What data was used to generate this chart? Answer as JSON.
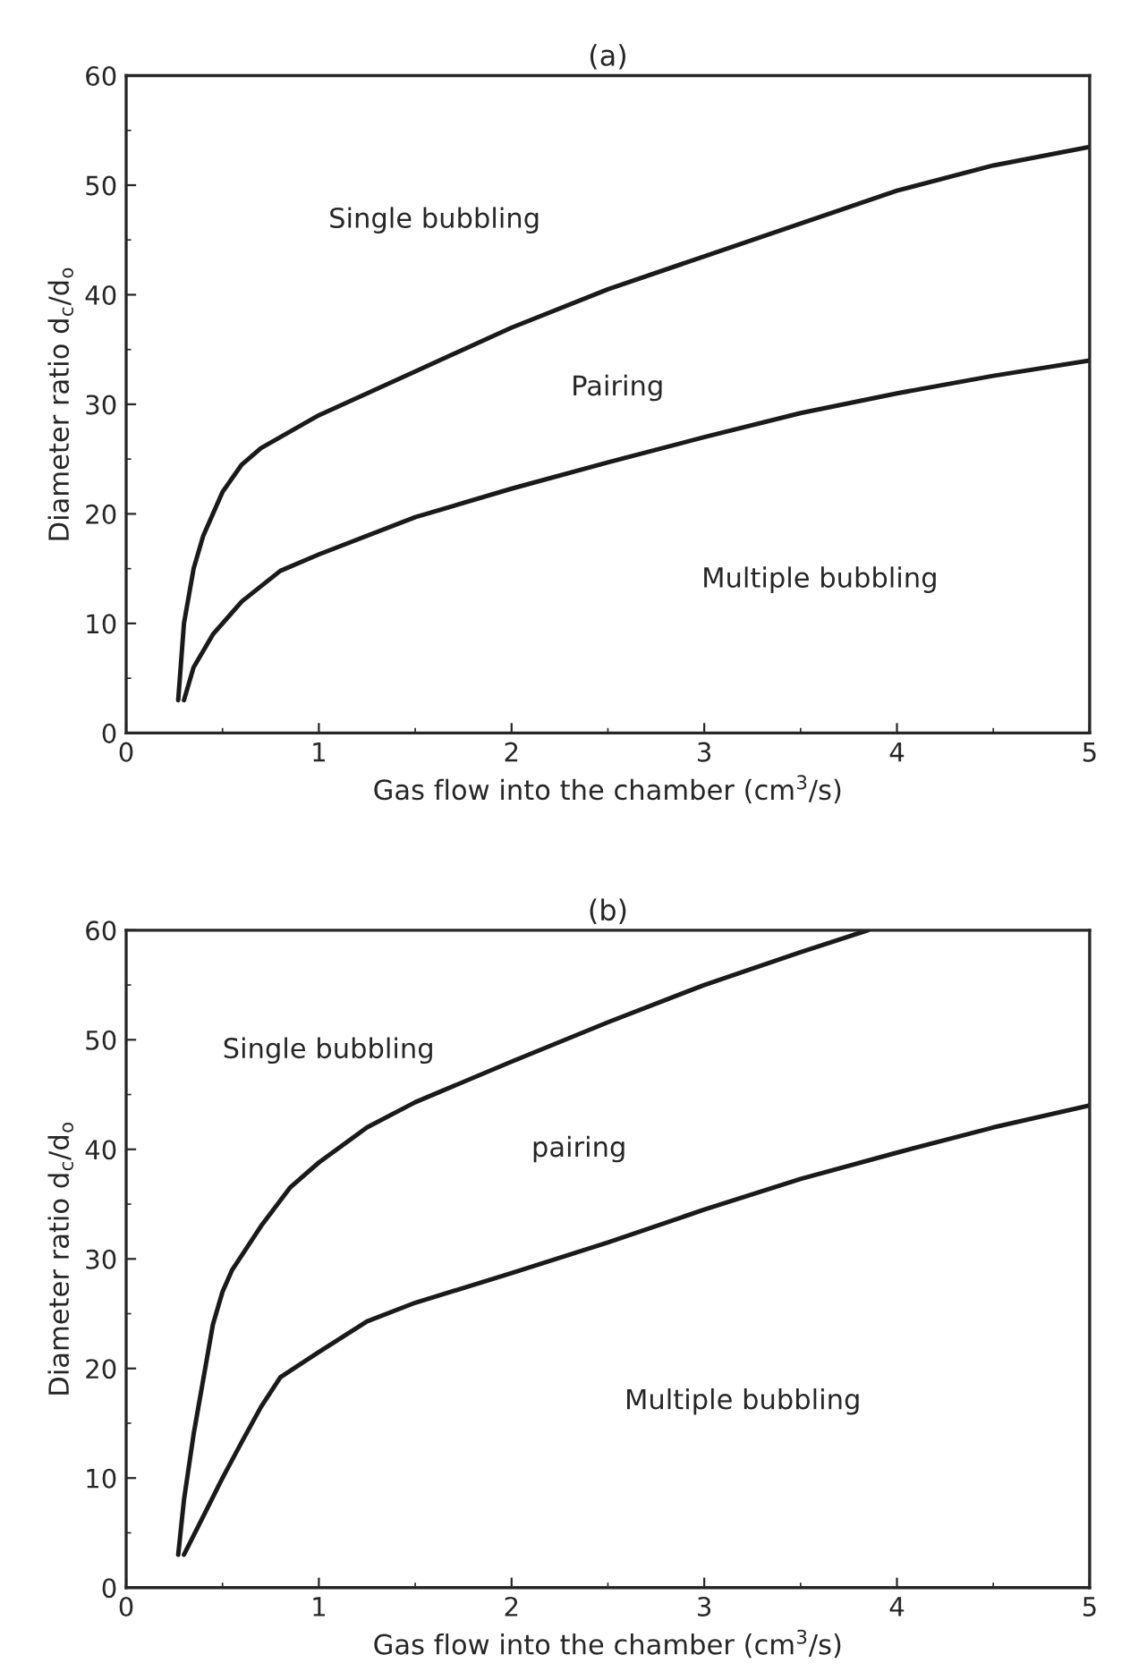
{
  "chart_data": [
    {
      "type": "line",
      "title": "(a)",
      "xlabel": "Gas flow into the chamber (cm$^{3}$/s)",
      "ylabel": "Diameter ratio d$_{c}$/d$_{o}$",
      "xlim": [
        0,
        5
      ],
      "ylim": [
        0,
        60
      ],
      "xticks": [
        0,
        1,
        2,
        3,
        4,
        5
      ],
      "yticks": [
        0,
        10,
        20,
        30,
        40,
        50,
        60
      ],
      "grid": false,
      "legend": false,
      "marker": "none",
      "line_style": "solid",
      "series": [
        {
          "color": "#1a1a1a",
          "x": [
            0.27,
            0.3,
            0.35,
            0.4,
            0.5,
            0.6,
            0.7,
            0.8,
            1.0,
            1.5,
            2.0,
            2.5,
            3.0,
            3.5,
            4.0,
            4.5,
            5.0
          ],
          "values": [
            3,
            10,
            15,
            18,
            22,
            24.5,
            26,
            27,
            29,
            33,
            37,
            40.5,
            43.5,
            46.5,
            49.5,
            51.8,
            53.5
          ]
        },
        {
          "color": "#1a1a1a",
          "x": [
            0.3,
            0.35,
            0.45,
            0.6,
            0.8,
            1.0,
            1.5,
            2.0,
            2.5,
            3.0,
            3.5,
            4.0,
            4.5,
            5.0
          ],
          "values": [
            3,
            6,
            9,
            12,
            14.8,
            16.3,
            19.7,
            22.3,
            24.7,
            27,
            29.2,
            31,
            32.6,
            34
          ]
        }
      ],
      "annotations": [
        "Single bubbling",
        "Pairing",
        "Multiple bubbling"
      ]
    },
    {
      "type": "line",
      "title": "(b)",
      "xlabel": "Gas flow into the chamber (cm$^{3}$/s)",
      "ylabel": "Diameter ratio d$_{c}$/d$_{o}$",
      "xlim": [
        0,
        5
      ],
      "ylim": [
        0,
        60
      ],
      "xticks": [
        0,
        1,
        2,
        3,
        4,
        5
      ],
      "yticks": [
        0,
        10,
        20,
        30,
        40,
        50,
        60
      ],
      "grid": false,
      "legend": false,
      "marker": "none",
      "line_style": "solid",
      "series": [
        {
          "color": "#1a1a1a",
          "x": [
            0.27,
            0.3,
            0.35,
            0.4,
            0.45,
            0.5,
            0.55,
            0.7,
            0.85,
            1.0,
            1.25,
            1.5,
            2.0,
            2.5,
            3.0,
            3.5,
            3.85
          ],
          "values": [
            3,
            8,
            14,
            19,
            24,
            27,
            29,
            33,
            36.5,
            38.8,
            42,
            44.3,
            48,
            51.6,
            55,
            58,
            60
          ]
        },
        {
          "color": "#1a1a1a",
          "x": [
            0.3,
            0.4,
            0.5,
            0.6,
            0.7,
            0.8,
            1.0,
            1.25,
            1.5,
            2.0,
            2.5,
            3.0,
            3.5,
            4.0,
            4.5,
            5.0
          ],
          "values": [
            3,
            6.5,
            10,
            13.3,
            16.5,
            19.2,
            21.5,
            24.3,
            26,
            28.7,
            31.5,
            34.5,
            37.3,
            39.7,
            42,
            44
          ]
        }
      ],
      "annotations": [
        "Single bubbling",
        "pairing",
        "Multiple bubbling"
      ]
    }
  ]
}
